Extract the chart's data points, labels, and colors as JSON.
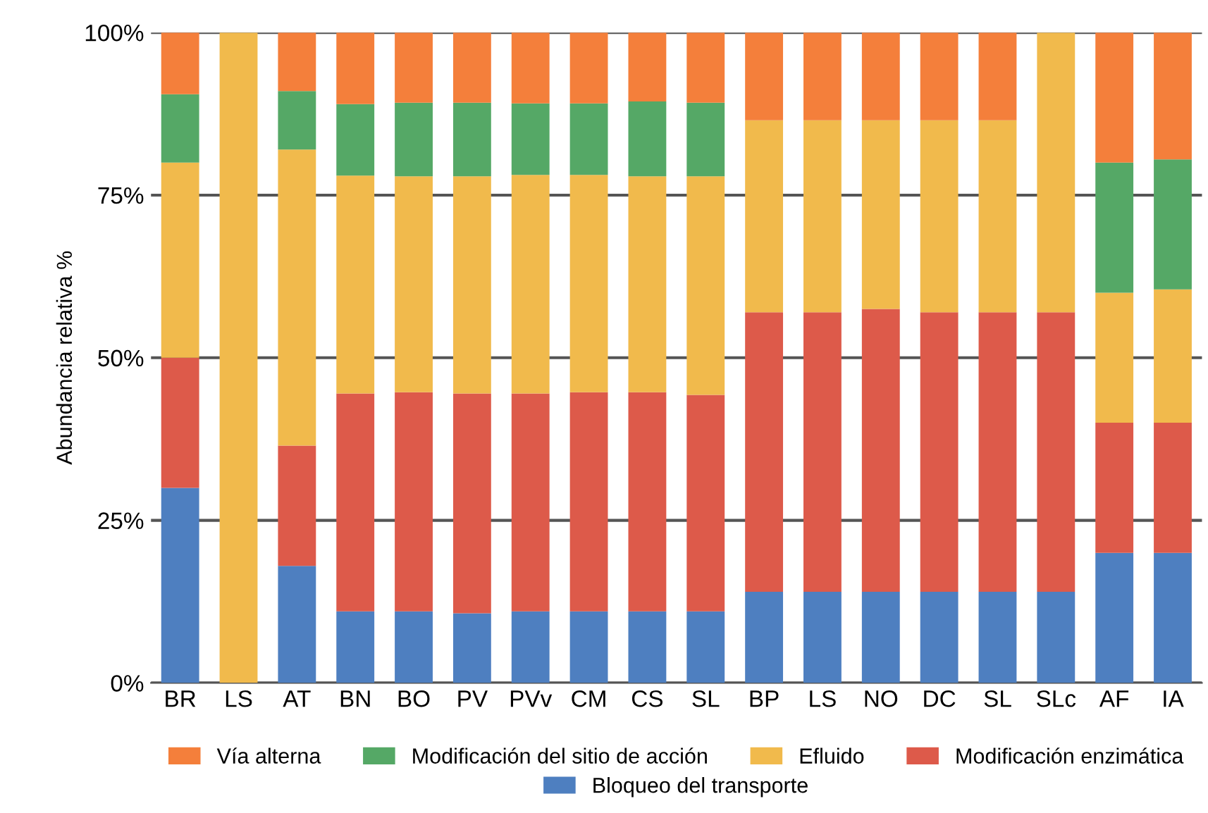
{
  "chart_data": {
    "type": "bar",
    "stacked": true,
    "ylabel": "Abundancia relativa %",
    "categories": [
      "BR",
      "LS",
      "AT",
      "BN",
      "BO",
      "PV",
      "PVv",
      "CM",
      "CS",
      "SL",
      "BP",
      "LS",
      "NO",
      "DC",
      "SL",
      "SLc",
      "AF",
      "IA"
    ],
    "series": [
      {
        "name": "Bloqueo del transporte",
        "color": "#4e7fc0",
        "values": [
          30,
          0,
          18,
          11,
          11,
          10.7,
          11,
          11,
          11,
          11,
          14,
          14,
          14,
          14,
          14,
          14,
          20,
          20
        ]
      },
      {
        "name": "Modificación enzimática",
        "color": "#dd5a4a",
        "values": [
          20,
          0,
          18.5,
          33.5,
          33.7,
          33.8,
          33.5,
          33.7,
          33.7,
          33.3,
          43,
          43,
          43.5,
          43,
          43,
          43,
          20,
          20
        ]
      },
      {
        "name": "Efluido",
        "color": "#f1ba4c",
        "values": [
          30,
          100,
          45.5,
          33.5,
          33.2,
          33.4,
          33.6,
          33.4,
          33.2,
          33.6,
          29.5,
          29.5,
          29,
          29.5,
          29.5,
          43,
          20,
          20.5
        ]
      },
      {
        "name": "Modificación del sitio de acción",
        "color": "#55a866",
        "values": [
          10.5,
          0,
          9,
          11,
          11.3,
          11.3,
          11,
          11,
          11.5,
          11.3,
          0,
          0,
          0,
          0,
          0,
          0,
          20,
          20
        ]
      },
      {
        "name": "Vía alterna",
        "color": "#f47f3b",
        "values": [
          9.5,
          0,
          9,
          11,
          10.8,
          10.8,
          10.9,
          10.9,
          10.6,
          10.8,
          13.5,
          13.5,
          13.5,
          13.5,
          13.5,
          0,
          20,
          19.5
        ]
      }
    ],
    "ylim": [
      0,
      100
    ],
    "yticks": [
      {
        "value": 0,
        "label": "0%"
      },
      {
        "value": 25,
        "label": "25%"
      },
      {
        "value": 50,
        "label": "50%"
      },
      {
        "value": 75,
        "label": "75%"
      },
      {
        "value": 100,
        "label": "100%"
      }
    ],
    "grid": "y",
    "legend": "bottom"
  }
}
